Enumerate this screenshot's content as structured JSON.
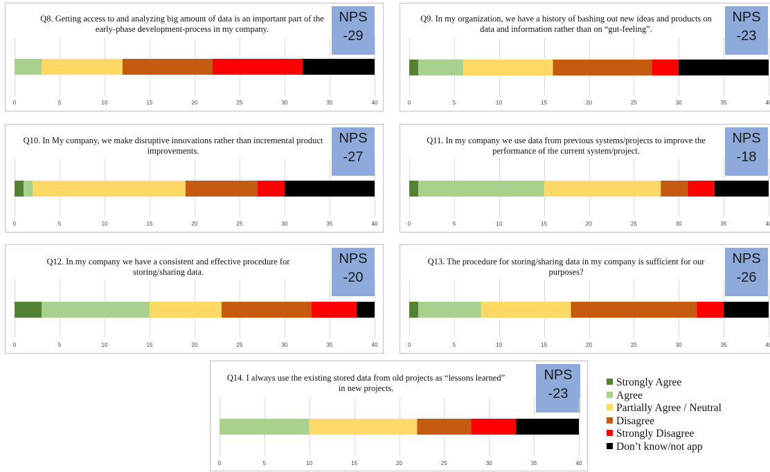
{
  "colors": [
    "#548235",
    "#a9d18e",
    "#ffd966",
    "#c55a11",
    "#ff0000",
    "#000000"
  ],
  "legend": [
    "Strongly Agree",
    "Agree",
    "Partially Agree / Neutral",
    "Disagree",
    "Strongly Disagree",
    "Don’t know/not app"
  ],
  "chart_data": [
    {
      "type": "bar",
      "title": "Q8. Getting access to and analyzing big amount of data is an important part of the early-phase development-process in my company.",
      "nps_label": "NPS",
      "nps_value": "-29",
      "xlim": [
        0,
        40
      ],
      "ticks": [
        0,
        5,
        10,
        15,
        20,
        25,
        30,
        35,
        40
      ],
      "segments": [
        0,
        3,
        9,
        10,
        10,
        8
      ]
    },
    {
      "type": "bar",
      "title": "Q9. In my organization, we have a history of bashing out new ideas and products on data and information rather than on “gut-feeling”.",
      "nps_label": "NPS",
      "nps_value": "-23",
      "xlim": [
        0,
        40
      ],
      "ticks": [
        0,
        5,
        10,
        15,
        20,
        25,
        30,
        35,
        40
      ],
      "segments": [
        1,
        5,
        10,
        11,
        3,
        10
      ]
    },
    {
      "type": "bar",
      "title": "Q10. In My company, we make disruptive innovations rather than incremental product improvements.",
      "nps_label": "NPS",
      "nps_value": "-27",
      "xlim": [
        0,
        40
      ],
      "ticks": [
        0,
        5,
        10,
        15,
        20,
        25,
        30,
        35,
        40
      ],
      "segments": [
        1,
        1,
        17,
        8,
        3,
        10
      ]
    },
    {
      "type": "bar",
      "title": "Q11. In my company we use data from previous systems/projects to improve the performance of the current system/project.",
      "nps_label": "NPS",
      "nps_value": "-18",
      "xlim": [
        0,
        40
      ],
      "ticks": [
        0,
        5,
        10,
        15,
        20,
        25,
        30,
        35,
        40
      ],
      "segments": [
        1,
        14,
        13,
        3,
        3,
        6
      ]
    },
    {
      "type": "bar",
      "title": "Q12. In my company we have a consistent and effective procedure for storing/sharing data.",
      "nps_label": "NPS",
      "nps_value": "-20",
      "xlim": [
        0,
        40
      ],
      "ticks": [
        0,
        5,
        10,
        15,
        20,
        25,
        30,
        35,
        40
      ],
      "segments": [
        3,
        12,
        8,
        10,
        5,
        2
      ]
    },
    {
      "type": "bar",
      "title": "Q13. The procedure for storing/sharing data in my company is sufficient for our purposes?",
      "nps_label": "NPS",
      "nps_value": "-26",
      "xlim": [
        0,
        40
      ],
      "ticks": [
        0,
        5,
        10,
        15,
        20,
        25,
        30,
        35,
        40
      ],
      "segments": [
        1,
        7,
        10,
        14,
        3,
        5
      ]
    },
    {
      "type": "bar",
      "title": "Q14. I always use the existing stored data from old projects as “lessons learned” in new projects.",
      "nps_label": "NPS",
      "nps_value": "-23",
      "xlim": [
        0,
        40
      ],
      "ticks": [
        0,
        5,
        10,
        15,
        20,
        25,
        30,
        35,
        40
      ],
      "segments": [
        0,
        10,
        12,
        6,
        5,
        7
      ]
    }
  ]
}
